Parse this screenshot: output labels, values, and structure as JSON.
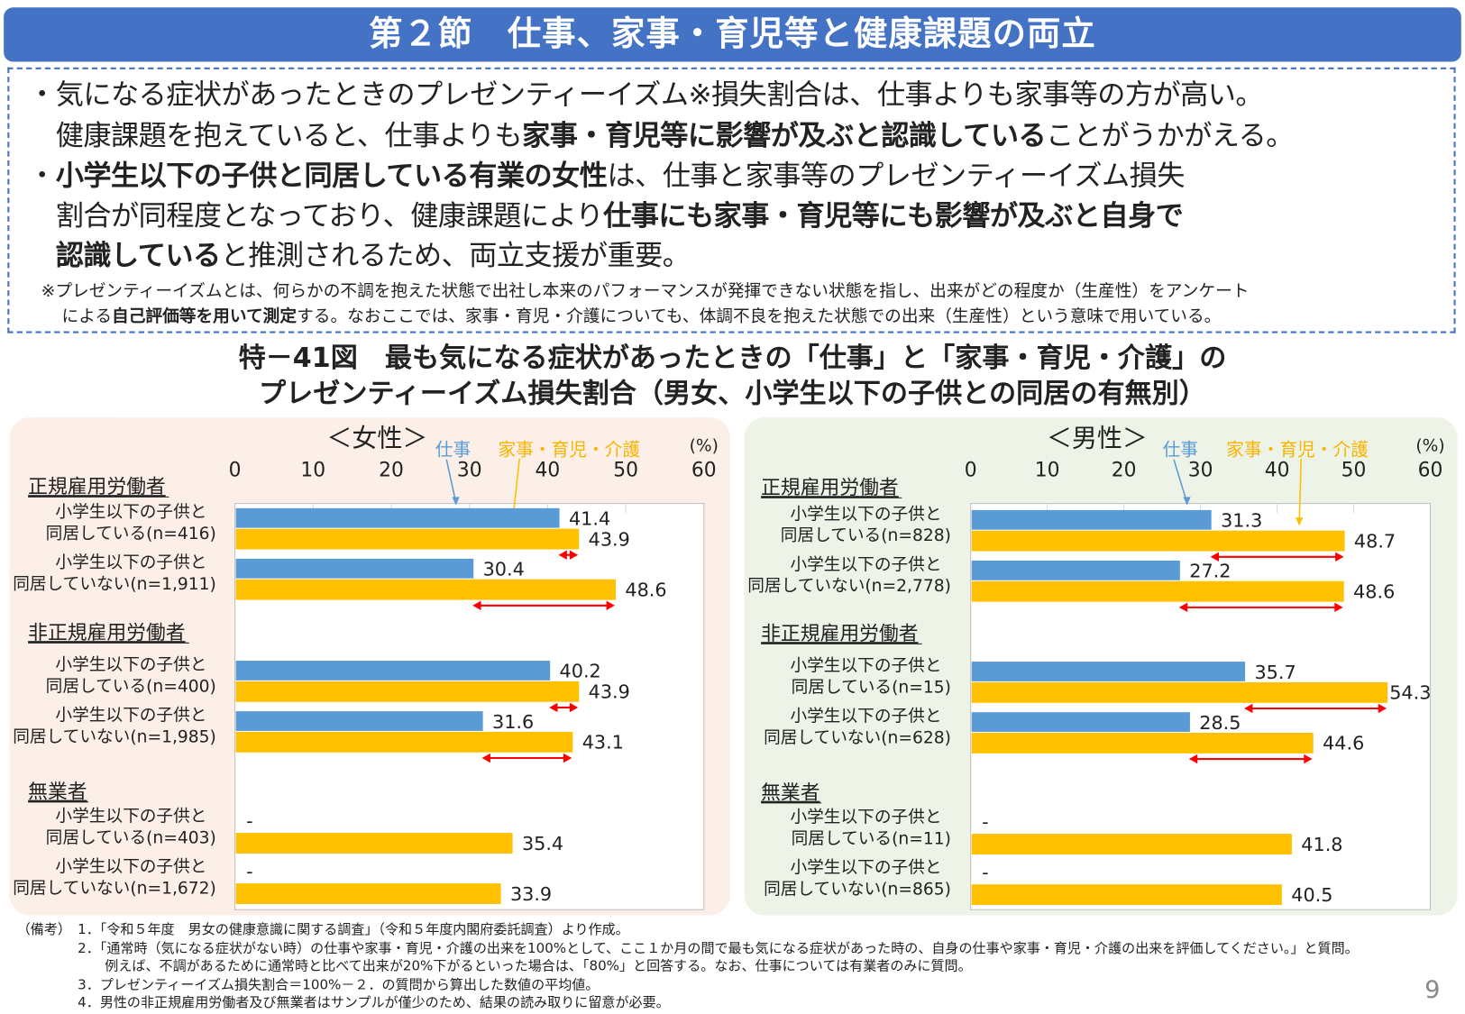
{
  "header": {
    "title": "第２節　仕事、家事・育児等と健康課題の両立"
  },
  "summary": {
    "lines": [
      [
        {
          "t": "・気になる症状があったときのプレゼンティーイズム※損失割合は、仕事よりも家事等の方が高い。",
          "b": false
        }
      ],
      [
        {
          "t": "　健康課題を抱えていると、仕事よりも",
          "b": false
        },
        {
          "t": "家事・育児等に影響が及ぶと認識している",
          "b": true
        },
        {
          "t": "ことがうかがえる。",
          "b": false
        }
      ],
      [
        {
          "t": "・",
          "b": false
        },
        {
          "t": "小学生以下の子供と同居している有業の女性",
          "b": true
        },
        {
          "t": "は、仕事と家事等のプレゼンティーイズム損失",
          "b": false
        }
      ],
      [
        {
          "t": "　割合が同程度となっており、健康課題により",
          "b": false
        },
        {
          "t": "仕事にも家事・育児等にも影響が及ぶと自身で",
          "b": true
        }
      ],
      [
        {
          "t": "　",
          "b": false
        },
        {
          "t": "認識している",
          "b": true
        },
        {
          "t": "と推測されるため、両立支援が重要。",
          "b": false
        }
      ]
    ],
    "note_lines": [
      [
        {
          "t": "※プレゼンティーイズムとは、何らかの不調を抱えた状態で出社し本来のパフォーマンスが発揮できない状態を指し、出来がどの程度か（生産性）をアンケート",
          "b": false
        }
      ],
      [
        {
          "t": "による",
          "b": false
        },
        {
          "t": "自己評価等を用いて測定",
          "b": true
        },
        {
          "t": "する。なおここでは、家事・育児・介護についても、体調不良を抱えた状態での出来（生産性）という意味で用いている。",
          "b": false
        }
      ]
    ]
  },
  "chart_title": {
    "line1": "特－41図　最も気になる症状があったときの「仕事」と「家事・育児・介護」の",
    "line2": "プレゼンティーイズム損失割合（男女、小学生以下の子供との同居の有無別）"
  },
  "chart_data": [
    {
      "type": "bar",
      "title": "＜女性＞",
      "unit": "(%)",
      "xlim": [
        0,
        60
      ],
      "ticks": [
        "0",
        "10",
        "20",
        "30",
        "40",
        "50",
        "60"
      ],
      "legend": [
        "仕事",
        "家事・育児・介護"
      ],
      "colors": {
        "work": "#5B9BD5",
        "home": "#FFC000",
        "diff_arrow": "#FF0000"
      },
      "groups": [
        "正規雇用労働者",
        "非正規雇用労働者",
        "無業者"
      ],
      "rows": [
        {
          "l1": "小学生以下の子供と",
          "l2": "同居している(n=416)",
          "work": 41.4,
          "work_label": "41.4",
          "home": 43.9,
          "home_label": "43.9"
        },
        {
          "l1": "小学生以下の子供と",
          "l2": "同居していない(n=1,911)",
          "work": 30.4,
          "work_label": "30.4",
          "home": 48.6,
          "home_label": "48.6"
        },
        {
          "l1": "小学生以下の子供と",
          "l2": "同居している(n=400)",
          "work": 40.2,
          "work_label": "40.2",
          "home": 43.9,
          "home_label": "43.9"
        },
        {
          "l1": "小学生以下の子供と",
          "l2": "同居していない(n=1,985)",
          "work": 31.6,
          "work_label": "31.6",
          "home": 43.1,
          "home_label": "43.1"
        },
        {
          "l1": "小学生以下の子供と",
          "l2": "同居している(n=403)",
          "work": null,
          "work_label": "-",
          "home": 35.4,
          "home_label": "35.4"
        },
        {
          "l1": "小学生以下の子供と",
          "l2": "同居していない(n=1,672)",
          "work": null,
          "work_label": "-",
          "home": 33.9,
          "home_label": "33.9"
        }
      ]
    },
    {
      "type": "bar",
      "title": "＜男性＞",
      "unit": "(%)",
      "xlim": [
        0,
        60
      ],
      "ticks": [
        "0",
        "10",
        "20",
        "30",
        "40",
        "50",
        "60"
      ],
      "legend": [
        "仕事",
        "家事・育児・介護"
      ],
      "colors": {
        "work": "#5B9BD5",
        "home": "#FFC000",
        "diff_arrow": "#FF0000"
      },
      "groups": [
        "正規雇用労働者",
        "非正規雇用労働者",
        "無業者"
      ],
      "rows": [
        {
          "l1": "小学生以下の子供と",
          "l2": "同居している(n=828)",
          "work": 31.3,
          "work_label": "31.3",
          "home": 48.7,
          "home_label": "48.7"
        },
        {
          "l1": "小学生以下の子供と",
          "l2": "同居していない(n=2,778)",
          "work": 27.2,
          "work_label": "27.2",
          "home": 48.6,
          "home_label": "48.6"
        },
        {
          "l1": "小学生以下の子供と",
          "l2": "同居している(n=15)",
          "work": 35.7,
          "work_label": "35.7",
          "home": 54.3,
          "home_label": "54.3"
        },
        {
          "l1": "小学生以下の子供と",
          "l2": "同居していない(n=628)",
          "work": 28.5,
          "work_label": "28.5",
          "home": 44.6,
          "home_label": "44.6"
        },
        {
          "l1": "小学生以下の子供と",
          "l2": "同居している(n=11)",
          "work": null,
          "work_label": "-",
          "home": 41.8,
          "home_label": "41.8"
        },
        {
          "l1": "小学生以下の子供と",
          "l2": "同居していない(n=865)",
          "work": null,
          "work_label": "-",
          "home": 40.5,
          "home_label": "40.5"
        }
      ]
    }
  ],
  "footnotes": {
    "prefix": "（備考）",
    "lines": [
      "1．「令和５年度　男女の健康意識に関する調査」（令和５年度内閣府委託調査）より作成。",
      "2．「通常時（気になる症状がない時）の仕事や家事・育児・介護の出来を100%として、ここ１か月の間で最も気になる症状があった時の、自身の仕事や家事・育児・介護の出来を評価してください。」と質問。",
      "　　例えば、不調があるために通常時と比べて出来が20%下がるといった場合は、「80%」と回答する。なお、仕事については有業者のみに質問。",
      "3．プレゼンティーイズム損失割合＝100%－２．の質問から算出した数値の平均値。",
      "4．男性の非正規雇用労働者及び無業者はサンプルが僅少のため、結果の読み取りに留意が必要。"
    ]
  },
  "page_number": "9"
}
